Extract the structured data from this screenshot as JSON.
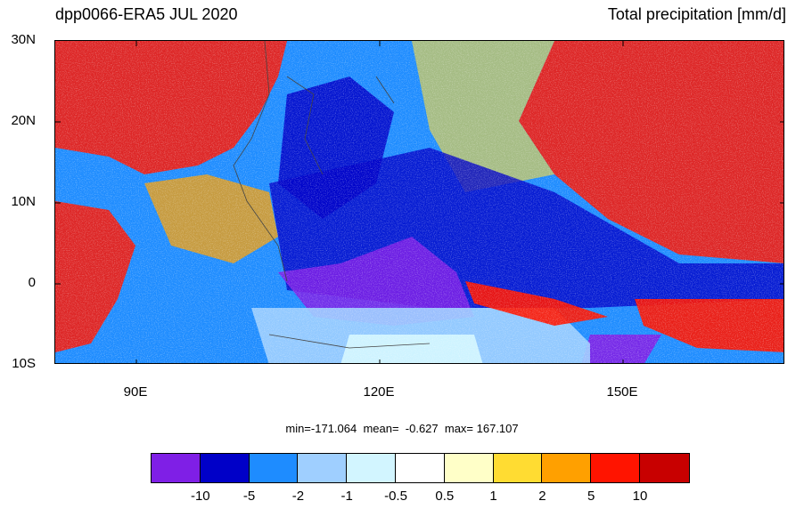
{
  "title_left": "dpp0066-ERA5 JUL 2020",
  "title_right": "Total precipitation [mm/d]",
  "lat_labels": [
    "30N",
    "20N",
    "10N",
    "0",
    "10S"
  ],
  "lon_labels": [
    "90E",
    "120E",
    "150E"
  ],
  "stats": "min=-171.064  mean=  -0.627  max= 167.107",
  "colorbar": {
    "colors": [
      "#7f1fe6",
      "#0000c8",
      "#1e8cff",
      "#9fcfff",
      "#d2f5ff",
      "#ffffff",
      "#ffffc8",
      "#ffdc32",
      "#ffa000",
      "#ff1400",
      "#c80000"
    ],
    "labels": [
      "-10",
      "-5",
      "-2",
      "-1",
      "-0.5",
      "0.5",
      "1",
      "2",
      "5",
      "10"
    ]
  },
  "map": {
    "lon_range": [
      80,
      170
    ],
    "lat_range": [
      -10,
      30
    ]
  }
}
